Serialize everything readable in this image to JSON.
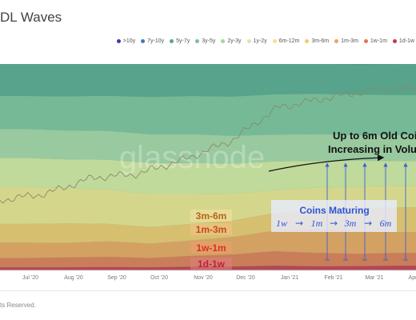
{
  "page": {
    "title": "DL Waves",
    "footer": "ts Reserved."
  },
  "legend": [
    {
      "label": ">10y",
      "color": "#3b3f9e"
    },
    {
      "label": "7y-10y",
      "color": "#3f7bbf"
    },
    {
      "label": "5y-7y",
      "color": "#5aa58c"
    },
    {
      "label": "3y-5y",
      "color": "#7fc09a"
    },
    {
      "label": "2y-3y",
      "color": "#a9d3a3"
    },
    {
      "label": "1y-2y",
      "color": "#d9e8a0"
    },
    {
      "label": "6m-12m",
      "color": "#f2e48c"
    },
    {
      "label": "3m-6m",
      "color": "#f5c76b"
    },
    {
      "label": "1m-3m",
      "color": "#f0a35a"
    },
    {
      "label": "1w-1m",
      "color": "#e4764f"
    },
    {
      "label": "1d-1w",
      "color": "#c9354a"
    }
  ],
  "chart_data": {
    "type": "area",
    "x": [
      "Jul '20",
      "Aug '20",
      "Sep '20",
      "Oct '20",
      "Nov '20",
      "Dec '20",
      "Jan '21",
      "Feb '21",
      "Mar '21",
      "Apr"
    ],
    "bands": [
      {
        "name": "1d-1w",
        "color": "#c9354a",
        "values": [
          1.5,
          1.5,
          1.6,
          1.5,
          1.8,
          1.9,
          2.3,
          2.0,
          2.1,
          2.3
        ]
      },
      {
        "name": "1w-1m",
        "color": "#e4764f",
        "values": [
          4.5,
          4.8,
          5.0,
          4.5,
          5.2,
          5.8,
          7.0,
          6.5,
          6.0,
          6.2
        ]
      },
      {
        "name": "1m-3m",
        "color": "#f0a35a",
        "values": [
          7.5,
          7.0,
          7.5,
          7.0,
          7.5,
          8.5,
          10.0,
          11.5,
          11.0,
          10.0
        ]
      },
      {
        "name": "3m-6m",
        "color": "#f5c76b",
        "values": [
          9.0,
          9.5,
          8.5,
          8.0,
          8.0,
          8.0,
          8.5,
          9.5,
          11.0,
          12.0
        ]
      },
      {
        "name": "6m-12m",
        "color": "#f2e48c",
        "values": [
          18.0,
          17.0,
          16.5,
          16.0,
          14.5,
          13.0,
          11.0,
          10.5,
          10.5,
          10.5
        ]
      },
      {
        "name": "1y-2y",
        "color": "#d9e8a0",
        "values": [
          14.0,
          14.0,
          14.5,
          15.0,
          15.0,
          14.5,
          14.0,
          13.0,
          12.5,
          12.0
        ]
      },
      {
        "name": "2y-3y",
        "color": "#a9d3a3",
        "values": [
          14.0,
          14.0,
          14.0,
          14.0,
          14.0,
          13.5,
          13.0,
          13.0,
          12.5,
          12.5
        ]
      },
      {
        "name": "3y-5y",
        "color": "#7fc09a",
        "values": [
          16.0,
          16.5,
          17.0,
          18.0,
          18.5,
          19.0,
          19.5,
          19.5,
          19.5,
          19.5
        ]
      },
      {
        "name": "5y-7y",
        "color": "#5aa58c",
        "values": [
          15.5,
          15.7,
          15.9,
          16.0,
          15.5,
          16.3,
          15.7,
          15.0,
          14.4,
          15.0
        ]
      }
    ],
    "price_line_relative": [
      0.15,
      0.2,
      0.32,
      0.35,
      0.46,
      0.6,
      0.85,
      0.92,
      0.98,
      1.0
    ],
    "ylim": [
      0,
      100
    ],
    "annotations": {
      "headline_line1": "Up to 6m Old Coi",
      "headline_line2": "Increasing in Volu",
      "maturing_title": "Coins Maturing",
      "maturing_steps": [
        "1w",
        "1m",
        "3m",
        "6m"
      ],
      "arrow_glyph": "→",
      "band_labels": [
        "3m-6m",
        "1m-3m",
        "1w-1m",
        "1d-1w"
      ]
    },
    "watermark": "glassnode"
  }
}
